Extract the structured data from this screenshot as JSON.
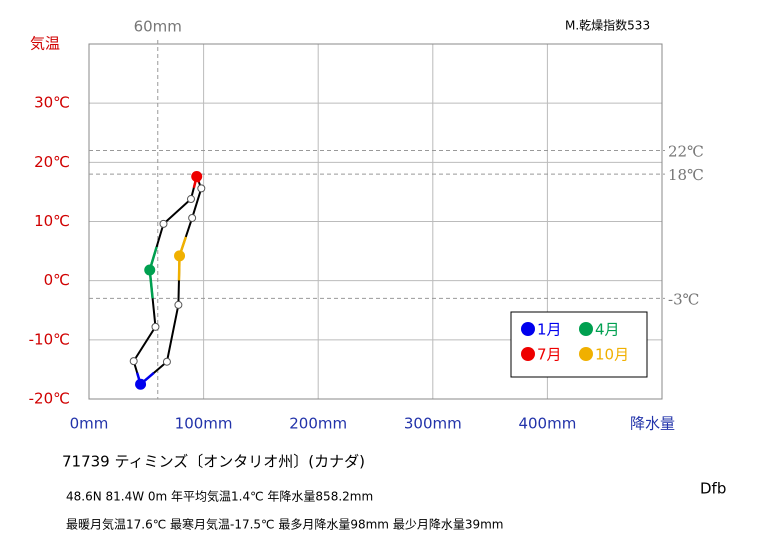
{
  "chart_data": {
    "type": "climograph",
    "title": "71739  ティミンズ〔オンタリオ州〕(カナダ)",
    "info_lines": [
      "48.6N  81.4W 0m  年平均気温1.4℃ 年降水量858.2mm",
      "最暖月気温17.6℃ 最寒月気温-17.5℃ 最多月降水量98mm 最少月降水量39mm"
    ],
    "climate": "Dfb",
    "aridity": "M.乾燥指数533",
    "x_label": "降水量",
    "y_label": "気温",
    "xlim": [
      0,
      500
    ],
    "xticks": [
      {
        "value": 0,
        "label": "0mm"
      },
      {
        "value": 100,
        "label": "100mm"
      },
      {
        "value": 200,
        "label": "200mm"
      },
      {
        "value": 300,
        "label": "300mm"
      },
      {
        "value": 400,
        "label": "400mm"
      }
    ],
    "ylim": [
      -20,
      40
    ],
    "yticks": [
      {
        "value": -20,
        "label": "-20℃"
      },
      {
        "value": -10,
        "label": "-10℃"
      },
      {
        "value": 0,
        "label": "0℃"
      },
      {
        "value": 10,
        "label": "10℃"
      },
      {
        "value": 20,
        "label": "20℃"
      },
      {
        "value": 30,
        "label": "30℃"
      }
    ],
    "grid": true,
    "ref_x": [
      {
        "value": 60,
        "label": "60mm"
      }
    ],
    "ref_y": [
      {
        "value": 22,
        "label": "22℃"
      },
      {
        "value": 18,
        "label": "18℃"
      },
      {
        "value": -3,
        "label": "-3℃"
      }
    ],
    "x": [
      45,
      39,
      58,
      53,
      65,
      89,
      94,
      98,
      90,
      79,
      78,
      68
    ],
    "values": [
      -17.5,
      -13.6,
      -7.8,
      1.8,
      9.6,
      13.8,
      17.6,
      15.6,
      10.6,
      4.2,
      -4.1,
      -13.7
    ],
    "line_color": "#000000",
    "marker_colors": [
      "#0000ee",
      "#ffffff",
      "#ffffff",
      "#00a050",
      "#ffffff",
      "#ffffff",
      "#ee0000",
      "#ffffff",
      "#ffffff",
      "#f0b000",
      "#ffffff",
      "#ffffff"
    ],
    "legend": [
      {
        "name": "1月",
        "color": "#0000ee"
      },
      {
        "name": "4月",
        "color": "#00a050"
      },
      {
        "name": "7月",
        "color": "#ee0000"
      },
      {
        "name": "10月",
        "color": "#f0b000"
      }
    ]
  }
}
